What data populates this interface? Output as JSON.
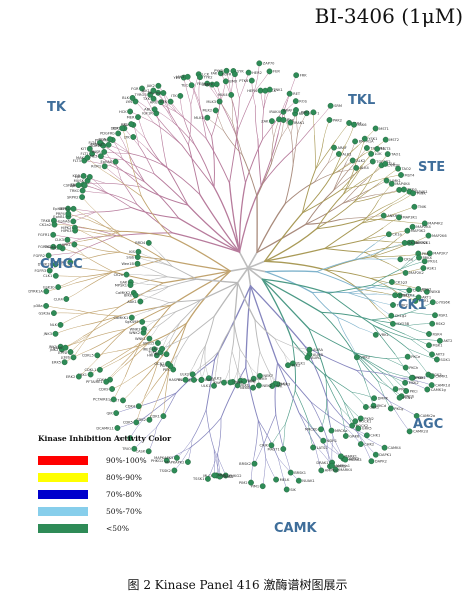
{
  "title": "BI-3406 (1μM)",
  "families": [
    {
      "id": "TK",
      "label": "TK",
      "color": "#b77b9c"
    },
    {
      "id": "TKL",
      "label": "TKL",
      "color": "#a98b7c"
    },
    {
      "id": "STE",
      "label": "STE",
      "color": "#a99a57"
    },
    {
      "id": "CK1",
      "label": "CK1",
      "color": "#7fb3cc"
    },
    {
      "id": "AGC",
      "label": "AGC",
      "color": "#4c9a86"
    },
    {
      "id": "CAMK",
      "label": "CAMK",
      "color": "#8686be"
    },
    {
      "id": "CMGC",
      "label": "CMGC",
      "color": "#c1a36e"
    },
    {
      "id": "other",
      "label": "",
      "color": "#b9b9b9"
    }
  ],
  "kinase_labels": {
    "TK": [
      "FGFR3",
      "FGFR2",
      "FGFR4",
      "FGFR1",
      "TRKB",
      "TRKC",
      "TRKA",
      "MUSK",
      "ROR1",
      "EphA8",
      "EphA6",
      "EphB1",
      "EphB3",
      "EphA4",
      "EphB2",
      "FLT3",
      "KIT",
      "FMS",
      "PDGFRa",
      "PDGFRb",
      "CSF1R",
      "KDR",
      "FLT1",
      "FLT4",
      "TIE2",
      "DDR1",
      "DDR2",
      "ALK",
      "LTK",
      "IGF1R",
      "INSR",
      "MET",
      "RON",
      "AXL",
      "MER",
      "TYRO3",
      "SRC",
      "FYN",
      "YES",
      "LCK",
      "HCK",
      "LYN",
      "BLK",
      "FGR",
      "ABL",
      "ARG",
      "BTK",
      "ITK",
      "TEC",
      "BMX",
      "TXK",
      "JAK1",
      "JAK2",
      "JAK3",
      "TYK2",
      "FAK",
      "PYK2",
      "SYK",
      "ZAP70",
      "FER",
      "FES",
      "CSK",
      "MATK",
      "EGFR",
      "HER2",
      "HER4",
      "ACK",
      "TNK1",
      "RET",
      "ROS",
      "PTK6",
      "FRK",
      "SRM"
    ],
    "TKL": [
      "MLK1",
      "MLK2",
      "MLK3",
      "MLK4",
      "ZAK",
      "DLK",
      "LZK",
      "IRAK1",
      "IRAK4",
      "RIPK2",
      "BRAF",
      "RAF1",
      "ARAF",
      "ALK1",
      "ALK2",
      "ALK4",
      "BMPR1A",
      "TGFBR1",
      "TGFBR2",
      "ACVR2B",
      "LIMK1",
      "TESK1",
      "ANKRD3"
    ],
    "STE": [
      "PAK1",
      "PAK2",
      "PAK4",
      "PAK6",
      "MST1",
      "MST2",
      "MST3",
      "MST4",
      "YSK1",
      "LOK",
      "SLK",
      "TAO1",
      "TAO2",
      "TAO3",
      "MAP4K1",
      "MAP4K2",
      "MAP4K4",
      "MINK",
      "TNIK",
      "MAP3K1",
      "MAP3K2",
      "MAP3K3",
      "MAP2K1",
      "MAP2K2",
      "MAP2K4",
      "MAP2K6",
      "MAP2K7",
      "ASK1",
      "NEK8",
      "OSR1",
      "STLK3",
      "MYO3B"
    ],
    "CK1": [
      "CK1a",
      "CK1d",
      "CK1e",
      "CK1g1",
      "CK1g2",
      "CK1g3",
      "TTBK1",
      "TTBK2",
      "VRK1",
      "VRK2"
    ],
    "AGC": [
      "PKA",
      "PRKX",
      "PKG1",
      "PKG2",
      "AKT1",
      "AKT2",
      "AKT3",
      "SGK1",
      "SGK3",
      "PDK1",
      "p70S6K",
      "RSK1",
      "RSK2",
      "RSK4",
      "MSK1",
      "MSK2",
      "PKCa",
      "PKCb",
      "PKCg",
      "PKCd",
      "PKCe",
      "PKCh",
      "PKCt",
      "PKCi",
      "PKN1",
      "PKN2",
      "ROCK1",
      "ROCK2",
      "MRCKa",
      "MRCKb",
      "DMPK",
      "GRK2",
      "GRK5",
      "GRK6",
      "NDR1",
      "LATS1",
      "MAST1",
      "CRIK"
    ],
    "CAMK": [
      "CAMK1",
      "CAMK1d",
      "CAMK1g",
      "CAMK2a",
      "CAMK2d",
      "CAMK4",
      "DAPK1",
      "DAPK2",
      "DAPK3",
      "DRAK1",
      "CHK1",
      "CHK2",
      "MARK1",
      "MARK2",
      "MARK3",
      "MARK4",
      "AMPKa1",
      "AMPKa2",
      "BRSK1",
      "BRSK2",
      "NUAK1",
      "SIK",
      "MELK",
      "PIM1",
      "PIM2",
      "PIM3",
      "MLCK",
      "TSSK1",
      "TSSK2",
      "PHKG1",
      "PHKG2",
      "MNK1",
      "MNK2",
      "MAPKAPK2",
      "MAPKAPK5",
      "CASK",
      "TRIO",
      "PASK",
      "DCAMKL1",
      "QIK"
    ],
    "CMGC": [
      "CDK1",
      "CDK2",
      "CDK4",
      "CDK5",
      "CDK7",
      "CDK9",
      "CDK6",
      "CDKL1",
      "CDKL5",
      "PCTAIRE1",
      "PFTAIRE1",
      "ERK1",
      "ERK2",
      "ERK5",
      "JNK1",
      "JNK2",
      "JNK3",
      "p38a",
      "p38b",
      "p38g",
      "p38d",
      "NLK",
      "GSK3a",
      "GSK3b",
      "CLK1",
      "CLK2",
      "CLK3",
      "CLK4",
      "DYRK1A",
      "DYRK1B",
      "DYRK2",
      "HIPK1",
      "HIPK2",
      "HIPK3",
      "SRPK1",
      "SRPK2",
      "CK2a1",
      "CK2a2",
      "PRP4",
      "MAK",
      "ICK"
    ],
    "other": [
      "AURA",
      "AURB",
      "AURC",
      "PLK1",
      "PLK2",
      "PLK3",
      "PLK4",
      "TTK",
      "NEK2",
      "NEK6",
      "NEK7",
      "NEK9",
      "WEE1",
      "MYT1",
      "IKKa",
      "IKKb",
      "TBK1",
      "IKKe",
      "ULK1",
      "ULK2",
      "ULK3",
      "CDC7",
      "BUB1",
      "BUBR1",
      "HASPIN",
      "PEK",
      "PKR",
      "GCN2",
      "HRI",
      "IRE1",
      "MOS",
      "TLK1",
      "TLK2",
      "VPS15",
      "WNK1",
      "WNK2",
      "WNK3",
      "SgK495",
      "CaMKK1",
      "CaMKK2",
      "AAK1",
      "BIKE",
      "GAK",
      "MPSK1",
      "CK2a",
      "Wee1B",
      "Slob",
      "KIS",
      "BRD4"
    ]
  },
  "legend": {
    "title": "Kinase Inhibition Activity Color",
    "items": [
      {
        "label": "90%-100%",
        "color": "#ff0000"
      },
      {
        "label": "80%-90%",
        "color": "#ffff00"
      },
      {
        "label": "70%-80%",
        "color": "#0000cc"
      },
      {
        "label": "50%-70%",
        "color": "#87ceeb"
      },
      {
        "label": "<50%",
        "color": "#2e8b57"
      }
    ]
  },
  "dot_color": "#2e8b57",
  "caption": "图 2    Kinase Panel 416 激酶谱树图展示"
}
